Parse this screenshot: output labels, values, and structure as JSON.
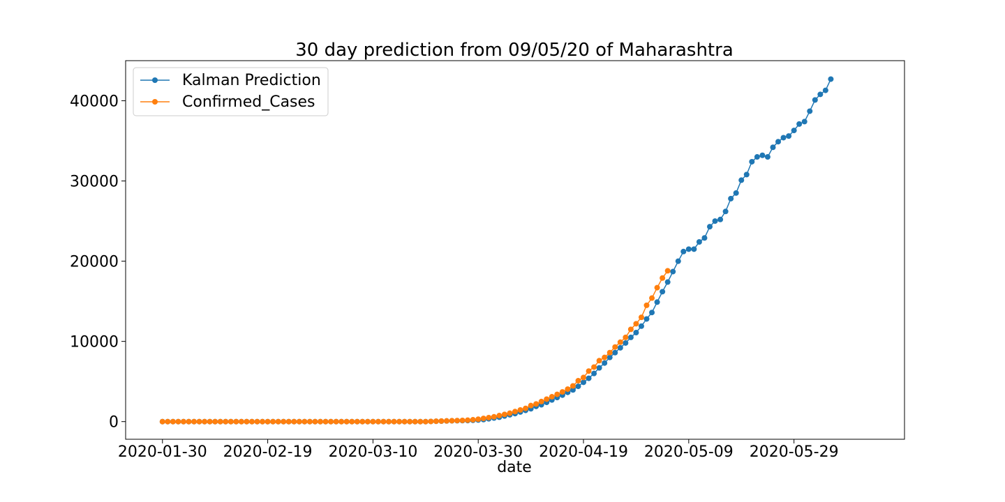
{
  "chart_data": {
    "type": "line",
    "title": "30 day prediction from 09/05/20 of Maharashtra",
    "xlabel": "date",
    "ylabel": "",
    "x_start": "2020-01-30",
    "x_tick_labels": [
      "2020-01-30",
      "2020-02-19",
      "2020-03-10",
      "2020-03-30",
      "2020-04-19",
      "2020-05-09",
      "2020-05-29"
    ],
    "y_ticks": [
      0,
      10000,
      20000,
      30000,
      40000
    ],
    "xlim": [
      "2020-01-23",
      "2020-06-19"
    ],
    "ylim": [
      -2200,
      45000
    ],
    "grid": false,
    "legend_position": "top-left",
    "colors": {
      "kalman": "#1f77b4",
      "confirmed": "#ff7f0e"
    },
    "series": [
      {
        "name": "Kalman Prediction",
        "color": "#1f77b4",
        "x_start": "2020-01-30",
        "values": [
          0,
          0,
          0,
          0,
          0,
          0,
          0,
          0,
          0,
          0,
          0,
          0,
          0,
          0,
          0,
          0,
          0,
          0,
          0,
          0,
          0,
          0,
          0,
          0,
          0,
          0,
          0,
          0,
          0,
          0,
          0,
          0,
          0,
          0,
          0,
          0,
          0,
          0,
          0,
          0,
          0,
          0,
          0,
          0,
          0,
          0,
          0,
          0,
          0,
          0,
          0,
          20,
          40,
          60,
          80,
          100,
          110,
          120,
          130,
          160,
          200,
          250,
          350,
          450,
          550,
          700,
          850,
          1000,
          1200,
          1400,
          1600,
          1900,
          2100,
          2400,
          2700,
          3000,
          3300,
          3650,
          3950,
          4400,
          4900,
          5400,
          6000,
          6700,
          7300,
          8000,
          8600,
          9200,
          9800,
          10500,
          11100,
          11900,
          12800,
          13600,
          14900,
          16200,
          17400,
          18700,
          20000,
          21200,
          21500,
          21500,
          22400,
          22900,
          24300,
          25000,
          25200,
          26200,
          27800,
          28500,
          30100,
          30800,
          32400,
          33000,
          33200,
          33000,
          34200,
          34900,
          35400,
          35600,
          36300,
          37100,
          37400,
          38700,
          40100,
          40800,
          41300,
          42700
        ]
      },
      {
        "name": "Confirmed_Cases",
        "color": "#ff7f0e",
        "x_start": "2020-01-30",
        "values": [
          0,
          0,
          0,
          0,
          0,
          0,
          0,
          0,
          0,
          0,
          0,
          0,
          0,
          0,
          0,
          0,
          0,
          0,
          0,
          0,
          0,
          0,
          0,
          0,
          0,
          0,
          0,
          0,
          0,
          0,
          0,
          0,
          0,
          0,
          0,
          0,
          0,
          0,
          0,
          0,
          0,
          0,
          0,
          0,
          0,
          0,
          0,
          0,
          0,
          0,
          0,
          20,
          50,
          70,
          90,
          110,
          130,
          150,
          180,
          230,
          300,
          400,
          500,
          600,
          750,
          900,
          1050,
          1250,
          1450,
          1650,
          2000,
          2200,
          2500,
          2800,
          3100,
          3400,
          3700,
          4050,
          4450,
          5100,
          5500,
          6300,
          6800,
          7600,
          8000,
          8600,
          9300,
          9900,
          10500,
          11500,
          12200,
          13000,
          14500,
          15400,
          16700,
          17900,
          18800
        ]
      }
    ]
  }
}
